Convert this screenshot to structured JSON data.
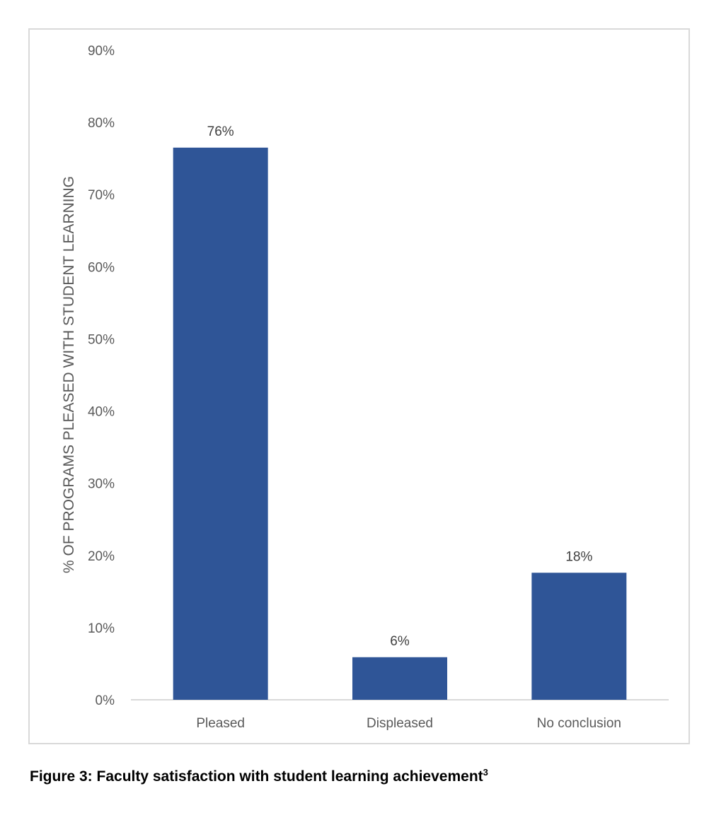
{
  "chart_data": {
    "type": "bar",
    "categories": [
      "Pleased",
      "Displeased",
      "No conclusion"
    ],
    "values": [
      76.5,
      5.9,
      17.6
    ],
    "data_labels": [
      "76%",
      "6%",
      "18%"
    ],
    "ylabel": "% OF PROGRAMS PLEASED WITH STUDENT LEARNING",
    "xlabel": "",
    "ylim": [
      0,
      90
    ],
    "yticks": [
      0,
      10,
      20,
      30,
      40,
      50,
      60,
      70,
      80,
      90
    ],
    "ytick_labels": [
      "0%",
      "10%",
      "20%",
      "30%",
      "40%",
      "50%",
      "60%",
      "70%",
      "80%",
      "90%"
    ],
    "grid": false,
    "bar_color": "#2f5597"
  },
  "caption": {
    "text": "Figure 3: Faculty satisfaction with student learning achievement",
    "superscript": "3"
  }
}
